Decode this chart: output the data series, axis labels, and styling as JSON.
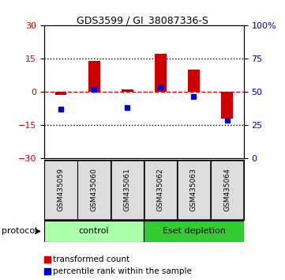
{
  "title": "GDS3599 / GI_38087336-S",
  "categories": [
    "GSM435059",
    "GSM435060",
    "GSM435061",
    "GSM435062",
    "GSM435063",
    "GSM435064"
  ],
  "red_values": [
    -1.5,
    14.0,
    1.0,
    17.0,
    10.0,
    -12.0
  ],
  "blue_values": [
    -8.0,
    1.0,
    -7.0,
    2.0,
    -2.0,
    -13.0
  ],
  "ylim_left": [
    -30,
    30
  ],
  "ylim_right": [
    0,
    100
  ],
  "yticks_left": [
    -30,
    -15,
    0,
    15,
    30
  ],
  "yticks_right": [
    0,
    25,
    50,
    75,
    100
  ],
  "red_color": "#cc0000",
  "blue_color": "#0000cc",
  "bar_width": 0.35,
  "groups": [
    {
      "label": "control",
      "color": "#aaffaa"
    },
    {
      "label": "Eset depletion",
      "color": "#33cc33"
    }
  ],
  "protocol_label": "protocol",
  "legend_red": "transformed count",
  "legend_blue": "percentile rank within the sample",
  "hline_color": "#cc0000",
  "dotted_color": "#000000",
  "bg_plot": "#ffffff",
  "bg_fig": "#ffffff",
  "sample_bg": "#bbbbbb",
  "title_fontsize": 9,
  "tick_fontsize": 8,
  "label_fontsize": 7.5,
  "sample_fontsize": 6.5
}
